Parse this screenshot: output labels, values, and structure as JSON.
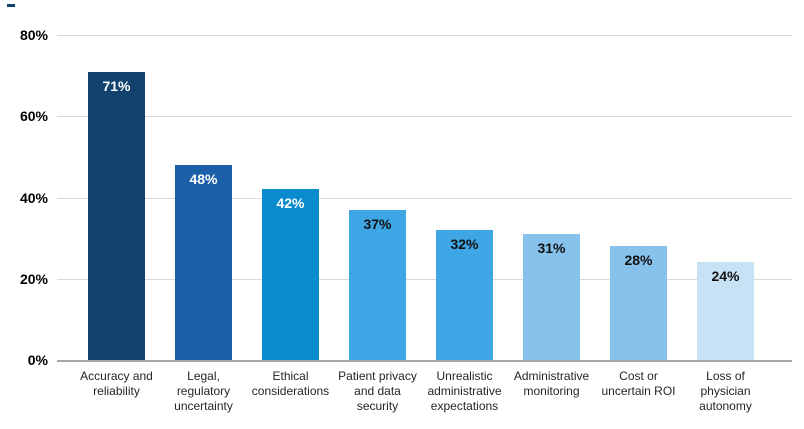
{
  "chart_data": {
    "type": "bar",
    "title": "",
    "xlabel": "",
    "ylabel": "",
    "ylim": [
      0,
      80
    ],
    "grid": "horizontal-gridlines",
    "legend_position": "none",
    "yticks": [
      {
        "value": 0,
        "label": "0%"
      },
      {
        "value": 20,
        "label": "20%"
      },
      {
        "value": 40,
        "label": "40%"
      },
      {
        "value": 60,
        "label": "60%"
      },
      {
        "value": 80,
        "label": "80%"
      }
    ],
    "categories": [
      "Accuracy and reliability",
      "Legal, regulatory uncertainty",
      "Ethical considerations",
      "Patient privacy and data security",
      "Unrealistic administrative expectations",
      "Administrative monitoring",
      "Cost or uncertain ROI",
      "Loss of physician autonomy"
    ],
    "values": [
      71,
      48,
      42,
      37,
      32,
      31,
      28,
      24
    ],
    "bars": [
      {
        "category_lines": [
          "Accuracy and",
          "reliability"
        ],
        "value": 71,
        "value_label": "71%",
        "bar_color": "#12426e",
        "value_text_color": "#ffffff"
      },
      {
        "category_lines": [
          "Legal,",
          "regulatory",
          "uncertainty"
        ],
        "value": 48,
        "value_label": "48%",
        "bar_color": "#1b5fa9",
        "value_text_color": "#ffffff"
      },
      {
        "category_lines": [
          "Ethical",
          "considerations"
        ],
        "value": 42,
        "value_label": "42%",
        "bar_color": "#0a8bce",
        "value_text_color": "#ffffff"
      },
      {
        "category_lines": [
          "Patient privacy",
          "and data",
          "security"
        ],
        "value": 37,
        "value_label": "37%",
        "bar_color": "#3ea6e5",
        "value_text_color": "#111111"
      },
      {
        "category_lines": [
          "Unrealistic",
          "administrative",
          "expectations"
        ],
        "value": 32,
        "value_label": "32%",
        "bar_color": "#3ea6e5",
        "value_text_color": "#111111"
      },
      {
        "category_lines": [
          "Administrative",
          "monitoring"
        ],
        "value": 31,
        "value_label": "31%",
        "bar_color": "#86c2ec",
        "value_text_color": "#111111"
      },
      {
        "category_lines": [
          "Cost or",
          "uncertain ROI"
        ],
        "value": 28,
        "value_label": "28%",
        "bar_color": "#86c2ec",
        "value_text_color": "#111111"
      },
      {
        "category_lines": [
          "Loss of",
          "physician",
          "autonomy"
        ],
        "value": 24,
        "value_label": "24%",
        "bar_color": "#c7e2f5",
        "value_text_color": "#111111"
      }
    ]
  },
  "colors": {
    "background": "#ffffff",
    "gridline": "#d9d9d9",
    "axis_line": "#a6a6a6",
    "tick_text": "#000000",
    "category_text": "#262626",
    "corner_mark": "#12426e"
  }
}
